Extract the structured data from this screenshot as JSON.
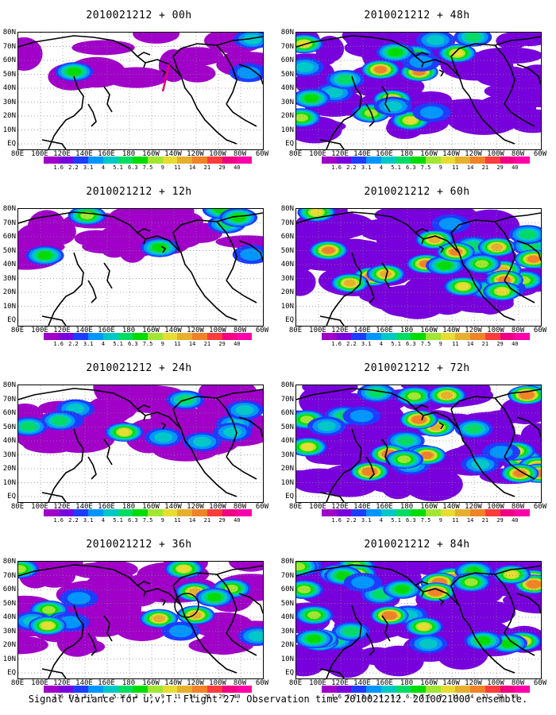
{
  "panels": [
    {
      "title": "2010021212 + 00h",
      "level": 0,
      "marker": "line"
    },
    {
      "title": "2010021212 + 12h",
      "level": 1,
      "marker": ""
    },
    {
      "title": "2010021212 + 24h",
      "level": 2,
      "marker": ""
    },
    {
      "title": "2010021212 + 36h",
      "level": 3,
      "marker": "circle"
    },
    {
      "title": "2010021212 + 48h",
      "level": 4,
      "marker": ""
    },
    {
      "title": "2010021212 + 60h",
      "level": 5,
      "marker": ""
    },
    {
      "title": "2010021212 + 72h",
      "level": 6,
      "marker": ""
    },
    {
      "title": "2010021212 + 84h",
      "level": 7,
      "marker": ""
    }
  ],
  "lat_labels": [
    "80N",
    "70N",
    "60N",
    "50N",
    "40N",
    "30N",
    "20N",
    "10N",
    "EQ"
  ],
  "lon_labels": [
    "80E",
    "100E",
    "120E",
    "140E",
    "160E",
    "180",
    "160W",
    "140W",
    "120W",
    "100W",
    "80W",
    "60W"
  ],
  "colorbar": {
    "labels": [
      "1.6",
      "2.2",
      "3.1",
      "4",
      "5.1",
      "6.3",
      "7.5",
      "9",
      "11",
      "14",
      "21",
      "29",
      "40"
    ],
    "colors": [
      "#a000c8",
      "#7800dc",
      "#1e3cff",
      "#0096ff",
      "#00c8c8",
      "#00dc64",
      "#00dc00",
      "#a0e632",
      "#e6dc32",
      "#e6af2d",
      "#f08228",
      "#fa3c3c",
      "#f00082"
    ]
  },
  "footer": "Signal Variance for u,v,T. Flight 27. Observation time 2010021212. 2010021000 ensemble."
}
